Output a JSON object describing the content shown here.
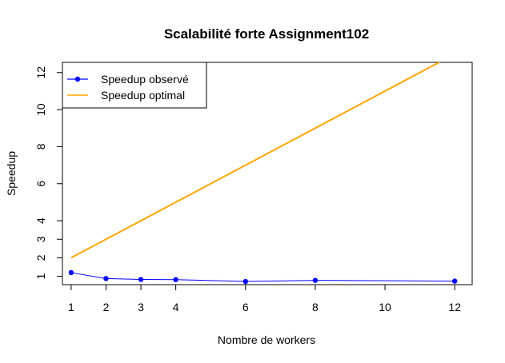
{
  "chart_data": {
    "type": "line",
    "title": "Scalabilité forte Assignment102",
    "xlabel": "Nombre de workers",
    "ylabel": "Speedup",
    "x": [
      1,
      2,
      3,
      4,
      6,
      8,
      12
    ],
    "x_ticks": [
      "1",
      "2",
      "3",
      "4",
      "6",
      "8",
      "10",
      "12"
    ],
    "y_ticks": [
      "1",
      "2",
      "3",
      "4",
      "6",
      "8",
      "10",
      "12"
    ],
    "xlim": [
      0.75,
      12.5
    ],
    "ylim": [
      0.55,
      12.55
    ],
    "grid": false,
    "legend_position": "top-left",
    "series": [
      {
        "name": "Speedup observé",
        "color": "#0000ff",
        "marker": "circle",
        "x": [
          1,
          2,
          3,
          4,
          6,
          8,
          12
        ],
        "values": [
          1.2,
          0.88,
          0.83,
          0.82,
          0.72,
          0.78,
          0.74
        ]
      },
      {
        "name": "Speedup optimal",
        "color": "#ffa500",
        "marker": "none",
        "x": [
          1,
          12
        ],
        "values": [
          2,
          13
        ]
      }
    ]
  }
}
